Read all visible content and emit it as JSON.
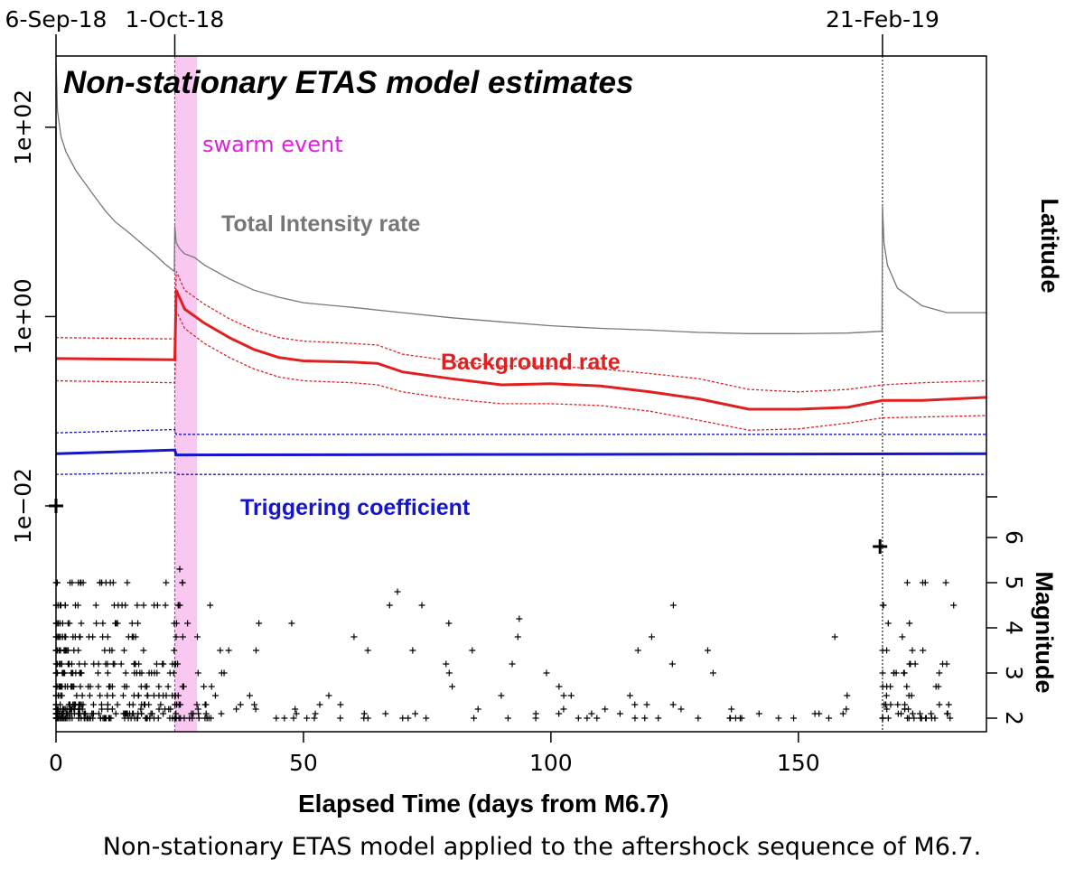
{
  "chart_data": {
    "type": "line",
    "title": "Non-stationary ETAS model estimates",
    "xlabel": "Elapsed Time (days from M6.7)",
    "ylabel_right_top": "Latitude",
    "ylabel_right_bottom": "Magnitude",
    "xlim": [
      0,
      188
    ],
    "x_ticks": [
      0,
      50,
      100,
      150
    ],
    "y_scale": "log",
    "ylim_log10": [
      -2.0,
      2.6
    ],
    "y_ticks": [
      "1e+02",
      "1e+00",
      "1e−02"
    ],
    "y_tick_values": [
      100,
      1,
      0.01
    ],
    "magnitude_ticks": [
      "2",
      "3",
      "4",
      "5",
      "6"
    ],
    "magnitude_tick_values": [
      2,
      3,
      4,
      5,
      6
    ],
    "magnitude_range": [
      1.8,
      6.8
    ],
    "date_markers": [
      {
        "label": "6-Sep-18",
        "x": 0
      },
      {
        "label": "1-Oct-18",
        "x": 24
      },
      {
        "label": "21-Feb-19",
        "x": 167
      }
    ],
    "swarm": {
      "label": "swarm event",
      "x_start": 24,
      "x_end": 28.5,
      "color": "#f8c8f0",
      "line_color": "#e020e0"
    },
    "grid": false,
    "legend": "inline labels",
    "series": [
      {
        "name": "Total Intensity rate",
        "color": "#777777",
        "x": [
          0,
          0.3,
          1,
          2,
          4,
          6,
          8,
          10,
          12,
          15,
          18,
          20,
          22,
          23.9,
          24,
          24.3,
          25,
          26,
          28,
          30,
          35,
          40,
          45,
          50,
          60,
          70,
          80,
          90,
          100,
          110,
          120,
          130,
          140,
          150,
          160,
          166.9,
          167,
          167.3,
          168,
          170,
          175,
          180,
          188
        ],
        "y": [
          500,
          150,
          80,
          55,
          35,
          25,
          18,
          13,
          10,
          7.5,
          5.5,
          4.5,
          3.6,
          3.0,
          9.0,
          6.0,
          5.2,
          4.6,
          4.2,
          3.5,
          2.5,
          1.9,
          1.6,
          1.4,
          1.25,
          1.1,
          0.97,
          0.88,
          0.8,
          0.75,
          0.72,
          0.68,
          0.66,
          0.66,
          0.67,
          0.7,
          15,
          6.0,
          3.5,
          2.0,
          1.3,
          1.1,
          1.1
        ]
      },
      {
        "name": "Background rate",
        "color": "#e02020",
        "x": [
          0,
          24,
          24.3,
          26,
          30,
          35,
          40,
          45,
          50,
          60,
          65,
          70,
          80,
          90,
          100,
          110,
          120,
          130,
          140,
          150,
          160,
          167,
          175,
          188
        ],
        "y": [
          0.36,
          0.35,
          1.9,
          1.2,
          0.85,
          0.6,
          0.45,
          0.37,
          0.34,
          0.33,
          0.32,
          0.26,
          0.22,
          0.19,
          0.195,
          0.185,
          0.16,
          0.135,
          0.105,
          0.105,
          0.11,
          0.13,
          0.13,
          0.14
        ]
      },
      {
        "name": "Background rate upper bound",
        "color": "#e02020",
        "x": [
          0,
          24,
          24.3,
          26,
          30,
          35,
          40,
          45,
          50,
          60,
          65,
          70,
          80,
          90,
          100,
          110,
          120,
          130,
          140,
          150,
          160,
          167,
          175,
          188
        ],
        "y": [
          0.6,
          0.58,
          3.0,
          1.9,
          1.35,
          0.95,
          0.72,
          0.6,
          0.55,
          0.52,
          0.5,
          0.4,
          0.34,
          0.3,
          0.3,
          0.28,
          0.25,
          0.22,
          0.17,
          0.16,
          0.17,
          0.19,
          0.2,
          0.21
        ]
      },
      {
        "name": "Background rate lower bound",
        "color": "#e02020",
        "x": [
          0,
          24,
          24.3,
          26,
          30,
          35,
          40,
          45,
          50,
          60,
          65,
          70,
          80,
          90,
          100,
          110,
          120,
          130,
          140,
          150,
          160,
          167,
          175,
          188
        ],
        "y": [
          0.21,
          0.2,
          1.15,
          0.75,
          0.52,
          0.37,
          0.28,
          0.23,
          0.21,
          0.2,
          0.19,
          0.16,
          0.135,
          0.12,
          0.12,
          0.115,
          0.1,
          0.08,
          0.063,
          0.065,
          0.075,
          0.085,
          0.087,
          0.09
        ]
      },
      {
        "name": "Triggering coefficient",
        "color": "#1515cc",
        "x": [
          0,
          24,
          24.3,
          188
        ],
        "y": [
          0.0355,
          0.039,
          0.0345,
          0.0355
        ]
      },
      {
        "name": "Triggering coefficient upper bound",
        "color": "#1515cc",
        "x": [
          0,
          24,
          24.3,
          188
        ],
        "y": [
          0.059,
          0.064,
          0.057,
          0.057
        ]
      },
      {
        "name": "Triggering coefficient lower bound",
        "color": "#1515cc",
        "x": [
          0,
          24,
          24.3,
          188
        ],
        "y": [
          0.0215,
          0.0225,
          0.0215,
          0.0215
        ]
      }
    ],
    "earthquakes": {
      "main_shocks": [
        {
          "x": 0,
          "mag": 6.7
        },
        {
          "x": 166.5,
          "mag": 5.8
        }
      ],
      "magnitudes": [
        2,
        2.1,
        2.2,
        2.3,
        2.5,
        2.7,
        3.0,
        3.2,
        3.5,
        3.8,
        4.1,
        4.5,
        5.0
      ],
      "notable": [
        {
          "x": 69,
          "mag": 4.8
        },
        {
          "x": 25,
          "mag": 5.3
        },
        {
          "x": 93.6,
          "mag": 4.2
        },
        {
          "x": 171,
          "mag": 3.8
        }
      ]
    }
  },
  "labels": {
    "title": "Non-stationary ETAS model estimates",
    "swarm": "swarm event",
    "total": "Total Intensity rate",
    "background": "Background rate",
    "triggering": "Triggering coefficient",
    "latitude": "Latitude",
    "magnitude": "Magnitude",
    "xlabel": "Elapsed Time (days from M6.7)"
  },
  "caption": "Non-stationary ETAS model applied to the aftershock sequence of M6.7.",
  "colors": {
    "total": "#777777",
    "background": "#e02020",
    "triggering": "#1515cc",
    "swarm_text": "#e020e0"
  }
}
